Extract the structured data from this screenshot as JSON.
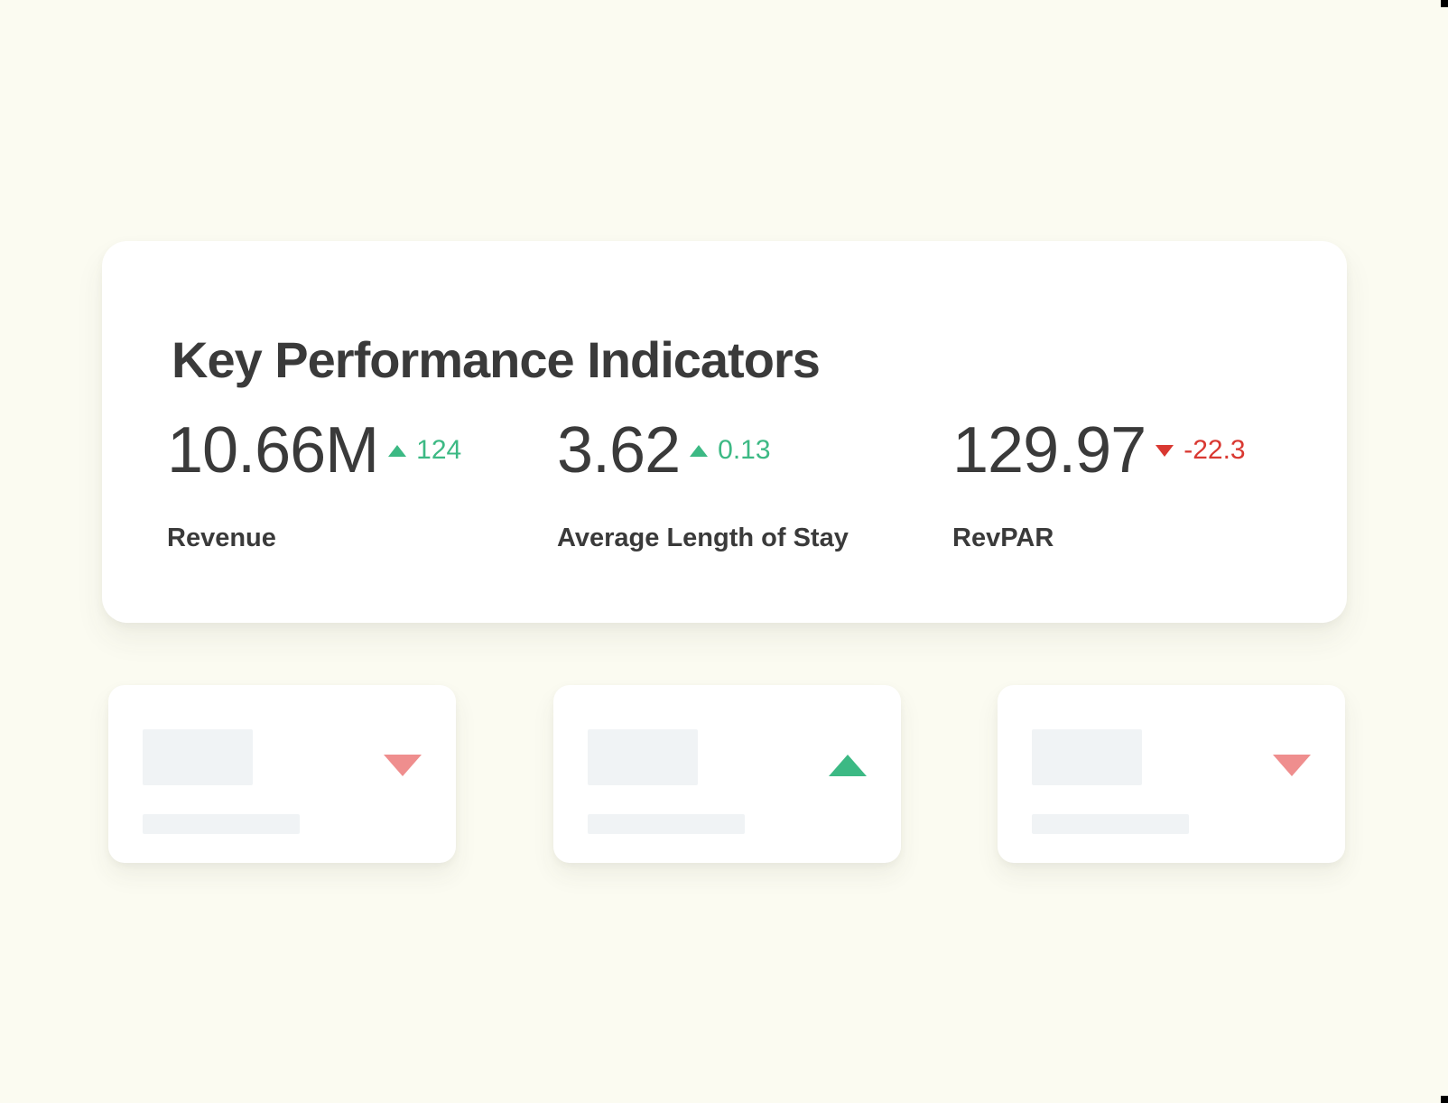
{
  "colors": {
    "background": "#fbfbf1",
    "card": "#ffffff",
    "text_primary": "#3a3a3a",
    "positive": "#3cb984",
    "negative": "#d93831",
    "negative_soft": "#ef8e8e",
    "skeleton": "#f0f3f5",
    "artifact": "#000000"
  },
  "kpi_card": {
    "title": "Key Performance Indicators",
    "metrics": [
      {
        "value": "10.66M",
        "delta": "124",
        "direction": "up",
        "label": "Revenue"
      },
      {
        "value": "3.62",
        "delta": "0.13",
        "direction": "up",
        "label": "Average Length of Stay"
      },
      {
        "value": "129.97",
        "delta": "-22.3",
        "direction": "down",
        "label": "RevPAR"
      }
    ]
  },
  "placeholder_cards": [
    {
      "direction": "down"
    },
    {
      "direction": "up"
    },
    {
      "direction": "down"
    }
  ]
}
